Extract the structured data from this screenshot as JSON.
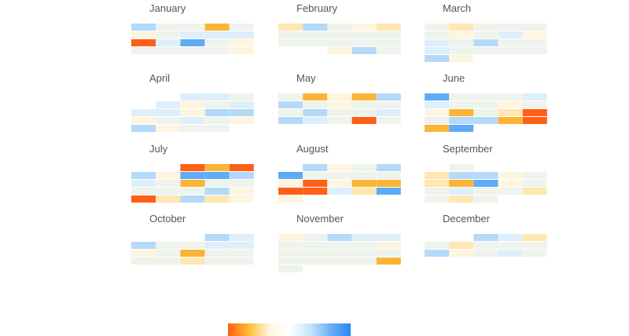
{
  "chart_data": {
    "type": "heatmap",
    "layout": "calendar-month-grid",
    "legend": {
      "type": "continuous-color-bar",
      "position": "bottom-center",
      "stops": [
        "#ff5f0f",
        "#ffbb33",
        "#fef6dd",
        "#ffffff",
        "#c8e6fb",
        "#6ab1f4",
        "#2a84f3"
      ]
    },
    "palette": {
      "orange_dark": "#ff5f16",
      "orange": "#fbb436",
      "orange_light": "#fee7b1",
      "cream": "#fdf5df",
      "neutral": "#eef3ec",
      "blue_pale": "#deeffc",
      "blue_light": "#b4d9f9",
      "blue": "#5fabf4"
    },
    "months": [
      {
        "name": "January",
        "cells": [
          [
            "blue_light",
            "neutral",
            "neutral",
            "orange",
            "neutral"
          ],
          [
            "cream",
            "neutral",
            "blue_pale",
            "blue_pale",
            "blue_pale"
          ],
          [
            "orange_dark",
            "blue_pale",
            "blue",
            "neutral",
            "cream"
          ],
          [
            "neutral",
            "neutral",
            "neutral",
            "neutral",
            "cream"
          ]
        ]
      },
      {
        "name": "February",
        "cells": [
          [
            "orange_light",
            "blue_light",
            "neutral",
            "cream",
            "orange_light"
          ],
          [
            "neutral",
            "neutral",
            "neutral",
            "neutral",
            "neutral"
          ],
          [
            "neutral",
            "neutral",
            "neutral",
            "neutral",
            "neutral"
          ],
          [
            null,
            null,
            "cream",
            "blue_light",
            "neutral"
          ]
        ]
      },
      {
        "name": "March",
        "cells": [
          [
            "neutral",
            "orange_light",
            "neutral",
            "neutral",
            "neutral"
          ],
          [
            "neutral",
            "cream",
            "neutral",
            "blue_pale",
            "cream"
          ],
          [
            "blue_pale",
            "neutral",
            "blue_light",
            "neutral",
            "neutral"
          ],
          [
            "blue_pale",
            "neutral",
            "neutral",
            "neutral",
            "neutral"
          ],
          [
            "blue_light",
            "cream",
            null,
            null,
            null
          ]
        ]
      },
      {
        "name": "April",
        "cells": [
          [
            null,
            null,
            "blue_pale",
            "blue_pale",
            "neutral"
          ],
          [
            null,
            "blue_pale",
            "cream",
            "neutral",
            "blue_pale"
          ],
          [
            "blue_pale",
            "blue_pale",
            "cream",
            "blue_light",
            "blue_light"
          ],
          [
            "cream",
            "neutral",
            "blue_pale",
            "neutral",
            "cream"
          ],
          [
            "blue_light",
            "cream",
            "neutral",
            "neutral",
            null
          ]
        ]
      },
      {
        "name": "May",
        "cells": [
          [
            "neutral",
            "orange",
            "cream",
            "orange",
            "blue_light"
          ],
          [
            "blue_light",
            "neutral",
            "cream",
            "neutral",
            "neutral"
          ],
          [
            "neutral",
            "blue_light",
            "neutral",
            "neutral",
            "blue_pale"
          ],
          [
            "blue_light",
            "blue_pale",
            "neutral",
            "orange_dark",
            "neutral"
          ]
        ]
      },
      {
        "name": "June",
        "cells": [
          [
            "blue",
            "neutral",
            "neutral",
            "neutral",
            "blue_pale"
          ],
          [
            "blue_pale",
            "neutral",
            "neutral",
            "cream",
            "neutral"
          ],
          [
            "cream",
            "orange",
            "neutral",
            "orange_light",
            "orange_dark"
          ],
          [
            "neutral",
            "blue_light",
            "blue_light",
            "orange",
            "orange_dark"
          ],
          [
            "orange",
            "blue",
            null,
            null,
            null
          ]
        ]
      },
      {
        "name": "July",
        "cells": [
          [
            null,
            null,
            "orange_dark",
            "orange",
            "orange_dark"
          ],
          [
            "blue_light",
            "cream",
            "blue",
            "blue",
            "blue_light"
          ],
          [
            "blue_pale",
            "neutral",
            "orange",
            "neutral",
            "neutral"
          ],
          [
            "neutral",
            "neutral",
            "neutral",
            "blue_light",
            "cream"
          ],
          [
            "orange_dark",
            "orange_light",
            "blue_light",
            "orange_light",
            "cream"
          ]
        ]
      },
      {
        "name": "August",
        "cells": [
          [
            null,
            "blue_light",
            "cream",
            "neutral",
            "blue_light"
          ],
          [
            "blue",
            "neutral",
            "neutral",
            "neutral",
            "neutral"
          ],
          [
            "cream",
            "orange_dark",
            "cream",
            "orange",
            "orange"
          ],
          [
            "orange_dark",
            "orange_dark",
            "blue_pale",
            "orange_light",
            "blue"
          ],
          [
            "cream",
            null,
            null,
            null,
            null
          ]
        ]
      },
      {
        "name": "September",
        "cells": [
          [
            null,
            "neutral",
            null,
            null,
            null
          ],
          [
            "orange_light",
            "blue_light",
            "blue_light",
            "cream",
            "neutral"
          ],
          [
            "orange_light",
            "orange",
            "blue",
            "cream",
            "neutral"
          ],
          [
            "neutral",
            "blue_pale",
            "neutral",
            "neutral",
            "orange_light"
          ],
          [
            "neutral",
            "orange_light",
            "neutral",
            null,
            null
          ]
        ]
      },
      {
        "name": "October",
        "cells": [
          [
            null,
            null,
            null,
            "blue_light",
            "blue_pale"
          ],
          [
            "blue_light",
            "neutral",
            "neutral",
            "blue_pale",
            "blue_pale"
          ],
          [
            "cream",
            "neutral",
            "orange",
            "neutral",
            "neutral"
          ],
          [
            "neutral",
            "neutral",
            "orange_light",
            "neutral",
            "neutral"
          ]
        ]
      },
      {
        "name": "November",
        "cells": [
          [
            "cream",
            "neutral",
            "blue_light",
            "blue_pale",
            "blue_pale"
          ],
          [
            "neutral",
            "neutral",
            "neutral",
            "neutral",
            "cream"
          ],
          [
            "neutral",
            "neutral",
            "neutral",
            "neutral",
            "neutral"
          ],
          [
            "neutral",
            "neutral",
            "neutral",
            "neutral",
            "orange"
          ],
          [
            "neutral",
            null,
            null,
            null,
            null
          ]
        ]
      },
      {
        "name": "December",
        "cells": [
          [
            null,
            null,
            "blue_light",
            "blue_pale",
            "orange_light"
          ],
          [
            "neutral",
            "orange_light",
            "neutral",
            "neutral",
            "neutral"
          ],
          [
            "blue_light",
            "cream",
            "neutral",
            "blue_pale",
            "neutral"
          ]
        ]
      }
    ]
  }
}
